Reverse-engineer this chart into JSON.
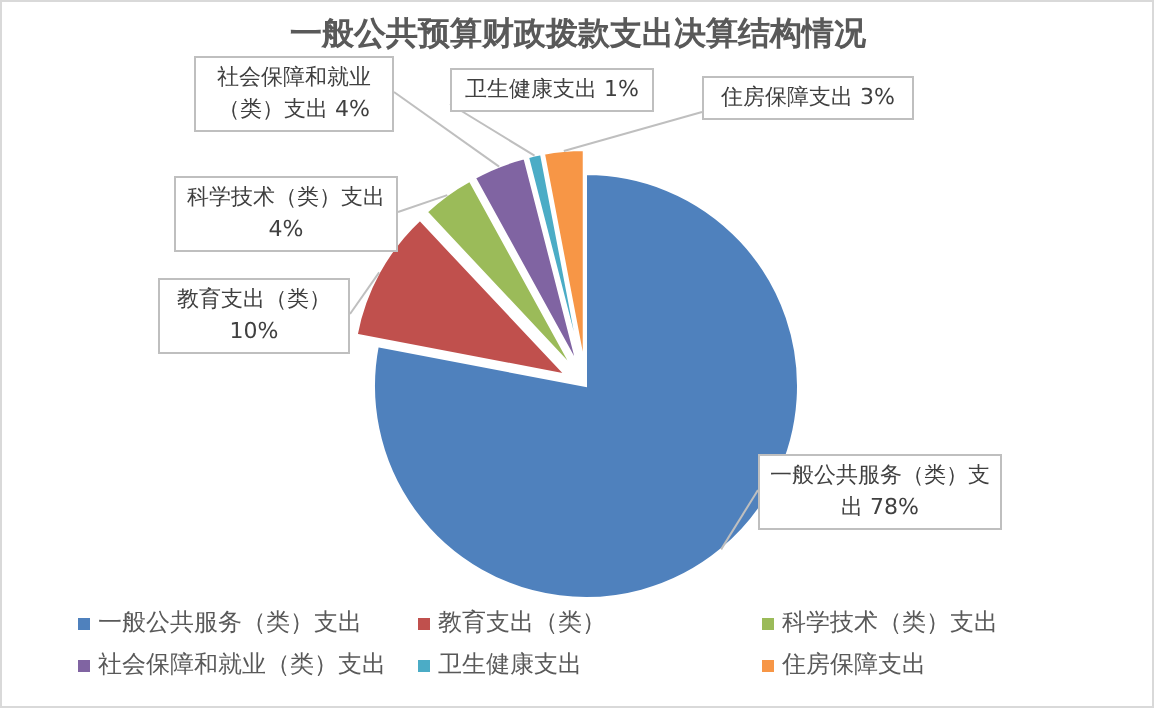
{
  "chart_data": {
    "type": "pie",
    "title": "一般公共预算财政拨款支出决算结构情况",
    "categories": [
      "一般公共服务（类）支出",
      "教育支出（类）",
      "科学技术（类）支出",
      "社会保障和就业（类）支出",
      "卫生健康支出",
      "住房保障支出"
    ],
    "values": [
      78,
      10,
      4,
      4,
      1,
      3
    ],
    "colors": [
      "#4f81bd",
      "#c0504d",
      "#9bbb59",
      "#8064a2",
      "#4bacc6",
      "#f79646"
    ],
    "value_labels": [
      "78%",
      "10%",
      "4%",
      "4%",
      "1%",
      "3%"
    ],
    "legend": "bottom"
  }
}
